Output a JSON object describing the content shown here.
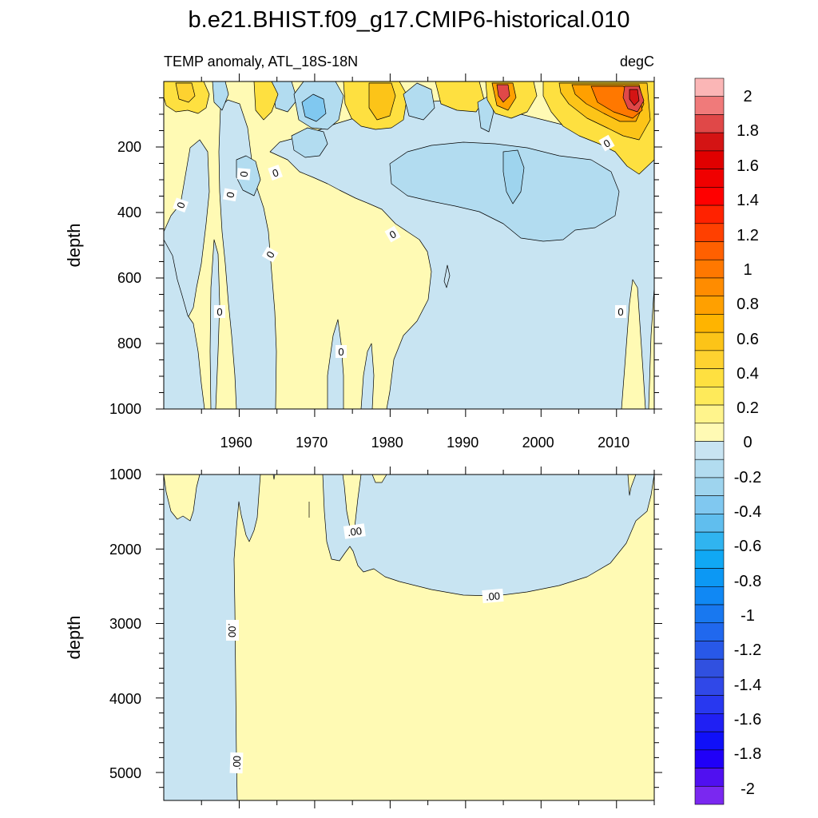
{
  "chart_data": {
    "type": "contour",
    "title": "b.e21.BHIST.f09_g17.CMIP6-historical.010",
    "subtitle_left": "TEMP anomaly, ATL_18S-18N",
    "subtitle_right": "degC",
    "xrange": [
      1950,
      2015
    ],
    "x_tick_labels": [
      "1960",
      "1970",
      "1980",
      "1990",
      "2000",
      "2010"
    ],
    "panels": [
      {
        "name": "upper",
        "ylabel": "depth",
        "yrange": [
          0,
          1000
        ],
        "y_tick_labels": [
          "200",
          "400",
          "600",
          "800",
          "1000"
        ],
        "contour_labels": [
          "0",
          "0",
          "0",
          "0",
          "0",
          "0",
          "0",
          "0",
          "0",
          "0"
        ]
      },
      {
        "name": "lower",
        "ylabel": "depth",
        "yrange": [
          1000,
          5375
        ],
        "y_tick_labels": [
          "1000",
          "2000",
          "3000",
          "4000",
          "5000"
        ],
        "contour_labels": [
          ".00",
          ".00",
          ".00",
          ".00"
        ]
      }
    ],
    "colorbar": {
      "labels": [
        "2",
        "1.8",
        "1.6",
        "1.4",
        "1.2",
        "1",
        "0.8",
        "0.6",
        "0.4",
        "0.2",
        "0",
        "-0.2",
        "-0.4",
        "-0.6",
        "-0.8",
        "-1",
        "-1.2",
        "-1.4",
        "-1.6",
        "-1.8",
        "-2"
      ],
      "colors": [
        "#fbb6b6",
        "#f07a7a",
        "#e04848",
        "#d41414",
        "#e00000",
        "#f00000",
        "#ff0000",
        "#ff2200",
        "#ff4000",
        "#ff6000",
        "#ff7800",
        "#ff8c00",
        "#ffa000",
        "#ffb400",
        "#fcc418",
        "#fed230",
        "#fee040",
        "#feea5a",
        "#fff48c",
        "#fffab4",
        "#c8e4f2",
        "#b2dcf0",
        "#9ed4ee",
        "#80c8f0",
        "#60beee",
        "#30b4f0",
        "#10a8f4",
        "#0c98f4",
        "#1088f4",
        "#1878f0",
        "#2068ee",
        "#2858e8",
        "#3050e0",
        "#3048e8",
        "#2838f0",
        "#2020f4",
        "#1010f8",
        "#2000f8",
        "#5010f0",
        "#7a28f0"
      ]
    }
  }
}
